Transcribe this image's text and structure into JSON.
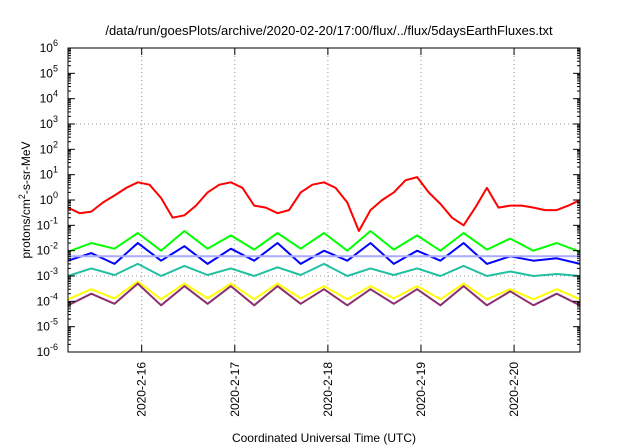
{
  "chart_data": {
    "type": "line",
    "title": "/data/run/goesPlots/archive/2020-02-20/17:00/flux/../flux/5daysEarthFluxes.txt",
    "xlabel": "Coordinated Universal Time (UTC)",
    "ylabel_parts": [
      "protons/cm",
      "2",
      "-s-sr-MeV"
    ],
    "y_scale": "log",
    "ylim": [
      1e-06,
      1000000.0
    ],
    "y_ticks": [
      {
        "base": "10",
        "exp": "-6",
        "value": 1e-06
      },
      {
        "base": "10",
        "exp": "-5",
        "value": 1e-05
      },
      {
        "base": "10",
        "exp": "-4",
        "value": 0.0001
      },
      {
        "base": "10",
        "exp": "-3",
        "value": 0.001
      },
      {
        "base": "10",
        "exp": "-2",
        "value": 0.01
      },
      {
        "base": "10",
        "exp": "-1",
        "value": 0.1
      },
      {
        "base": "10",
        "exp": "0",
        "value": 1
      },
      {
        "base": "10",
        "exp": "1",
        "value": 10
      },
      {
        "base": "10",
        "exp": "2",
        "value": 100
      },
      {
        "base": "10",
        "exp": "3",
        "value": 1000
      },
      {
        "base": "10",
        "exp": "4",
        "value": 10000
      },
      {
        "base": "10",
        "exp": "5",
        "value": 100000
      },
      {
        "base": "10",
        "exp": "6",
        "value": 1000000
      }
    ],
    "xlim": [
      "2020-02-15T05:00",
      "2020-02-20T17:00"
    ],
    "x_ticks": [
      {
        "label": "2020-2-16",
        "value": "2020-02-16T00:00"
      },
      {
        "label": "2020-2-17",
        "value": "2020-02-17T00:00"
      },
      {
        "label": "2020-2-18",
        "value": "2020-02-18T00:00"
      },
      {
        "label": "2020-2-19",
        "value": "2020-02-19T00:00"
      },
      {
        "label": "2020-2-20",
        "value": "2020-02-20T00:00"
      }
    ],
    "grid": true,
    "series": [
      {
        "color": "#ff0000",
        "x": [
          "2020-02-15T05:00",
          "2020-02-15T08:00",
          "2020-02-15T11:00",
          "2020-02-15T14:00",
          "2020-02-15T17:00",
          "2020-02-15T20:00",
          "2020-02-15T23:00",
          "2020-02-16T02:00",
          "2020-02-16T05:00",
          "2020-02-16T08:00",
          "2020-02-16T11:00",
          "2020-02-16T14:00",
          "2020-02-16T17:00",
          "2020-02-16T20:00",
          "2020-02-16T23:00",
          "2020-02-17T02:00",
          "2020-02-17T05:00",
          "2020-02-17T08:00",
          "2020-02-17T11:00",
          "2020-02-17T14:00",
          "2020-02-17T17:00",
          "2020-02-17T20:00",
          "2020-02-17T23:00",
          "2020-02-18T02:00",
          "2020-02-18T05:00",
          "2020-02-18T08:00",
          "2020-02-18T11:00",
          "2020-02-18T14:00",
          "2020-02-18T17:00",
          "2020-02-18T20:00",
          "2020-02-18T23:00",
          "2020-02-19T02:00",
          "2020-02-19T05:00",
          "2020-02-19T08:00",
          "2020-02-19T11:00",
          "2020-02-19T14:00",
          "2020-02-19T17:00",
          "2020-02-19T20:00",
          "2020-02-19T23:00",
          "2020-02-20T02:00",
          "2020-02-20T05:00",
          "2020-02-20T08:00",
          "2020-02-20T11:00",
          "2020-02-20T14:00",
          "2020-02-20T17:00"
        ],
        "y": [
          0.5,
          0.3,
          0.35,
          0.8,
          1.5,
          3,
          5,
          4,
          1.2,
          0.2,
          0.25,
          0.6,
          2,
          4,
          5,
          3,
          0.6,
          0.5,
          0.3,
          0.4,
          2,
          4,
          5,
          3,
          0.8,
          0.06,
          0.4,
          1,
          2,
          6,
          8,
          2,
          0.7,
          0.2,
          0.1,
          0.5,
          3,
          0.5,
          0.6,
          0.6,
          0.5,
          0.4,
          0.4,
          0.6,
          1
        ]
      },
      {
        "color": "#00ff00",
        "x": [
          "2020-02-15T05:00",
          "2020-02-15T11:00",
          "2020-02-15T17:00",
          "2020-02-15T23:00",
          "2020-02-16T05:00",
          "2020-02-16T11:00",
          "2020-02-16T17:00",
          "2020-02-16T23:00",
          "2020-02-17T05:00",
          "2020-02-17T11:00",
          "2020-02-17T17:00",
          "2020-02-17T23:00",
          "2020-02-18T05:00",
          "2020-02-18T11:00",
          "2020-02-18T17:00",
          "2020-02-18T23:00",
          "2020-02-19T05:00",
          "2020-02-19T11:00",
          "2020-02-19T17:00",
          "2020-02-19T23:00",
          "2020-02-20T05:00",
          "2020-02-20T11:00",
          "2020-02-20T17:00"
        ],
        "y": [
          0.009,
          0.02,
          0.012,
          0.05,
          0.01,
          0.06,
          0.012,
          0.04,
          0.011,
          0.05,
          0.012,
          0.05,
          0.01,
          0.06,
          0.011,
          0.04,
          0.01,
          0.05,
          0.011,
          0.03,
          0.01,
          0.02,
          0.009
        ]
      },
      {
        "color": "#0000ff",
        "x": [
          "2020-02-15T05:00",
          "2020-02-15T11:00",
          "2020-02-15T17:00",
          "2020-02-15T23:00",
          "2020-02-16T05:00",
          "2020-02-16T11:00",
          "2020-02-16T17:00",
          "2020-02-16T23:00",
          "2020-02-17T05:00",
          "2020-02-17T11:00",
          "2020-02-17T17:00",
          "2020-02-17T23:00",
          "2020-02-18T05:00",
          "2020-02-18T11:00",
          "2020-02-18T17:00",
          "2020-02-18T23:00",
          "2020-02-19T05:00",
          "2020-02-19T11:00",
          "2020-02-19T17:00",
          "2020-02-19T23:00",
          "2020-02-20T05:00",
          "2020-02-20T11:00",
          "2020-02-20T17:00"
        ],
        "y": [
          0.004,
          0.008,
          0.003,
          0.02,
          0.004,
          0.015,
          0.003,
          0.012,
          0.004,
          0.02,
          0.003,
          0.01,
          0.004,
          0.02,
          0.003,
          0.01,
          0.004,
          0.02,
          0.003,
          0.006,
          0.004,
          0.005,
          0.003
        ]
      },
      {
        "color": "#aaaaff",
        "x": [
          "2020-02-15T05:00",
          "2020-02-16T05:00",
          "2020-02-17T05:00",
          "2020-02-18T05:00",
          "2020-02-19T05:00",
          "2020-02-20T05:00",
          "2020-02-20T17:00"
        ],
        "y": [
          0.006,
          0.006,
          0.006,
          0.006,
          0.006,
          0.006,
          0.006
        ]
      },
      {
        "color": "#20c0a0",
        "x": [
          "2020-02-15T05:00",
          "2020-02-15T11:00",
          "2020-02-15T17:00",
          "2020-02-15T23:00",
          "2020-02-16T05:00",
          "2020-02-16T11:00",
          "2020-02-16T17:00",
          "2020-02-16T23:00",
          "2020-02-17T05:00",
          "2020-02-17T11:00",
          "2020-02-17T17:00",
          "2020-02-17T23:00",
          "2020-02-18T05:00",
          "2020-02-18T11:00",
          "2020-02-18T17:00",
          "2020-02-18T23:00",
          "2020-02-19T05:00",
          "2020-02-19T11:00",
          "2020-02-19T17:00",
          "2020-02-19T23:00",
          "2020-02-20T05:00",
          "2020-02-20T11:00",
          "2020-02-20T17:00"
        ],
        "y": [
          0.001,
          0.002,
          0.0011,
          0.003,
          0.001,
          0.0025,
          0.0011,
          0.002,
          0.001,
          0.0022,
          0.0011,
          0.003,
          0.001,
          0.002,
          0.0011,
          0.002,
          0.001,
          0.0025,
          0.001,
          0.0015,
          0.001,
          0.0012,
          0.001
        ]
      },
      {
        "color": "#ffff00",
        "x": [
          "2020-02-15T05:00",
          "2020-02-15T11:00",
          "2020-02-15T17:00",
          "2020-02-15T23:00",
          "2020-02-16T05:00",
          "2020-02-16T11:00",
          "2020-02-16T17:00",
          "2020-02-16T23:00",
          "2020-02-17T05:00",
          "2020-02-17T11:00",
          "2020-02-17T17:00",
          "2020-02-17T23:00",
          "2020-02-18T05:00",
          "2020-02-18T11:00",
          "2020-02-18T17:00",
          "2020-02-18T23:00",
          "2020-02-19T05:00",
          "2020-02-19T11:00",
          "2020-02-19T17:00",
          "2020-02-19T23:00",
          "2020-02-20T05:00",
          "2020-02-20T11:00",
          "2020-02-20T17:00"
        ],
        "y": [
          0.00012,
          0.0003,
          0.00013,
          0.0006,
          0.00012,
          0.0005,
          0.00013,
          0.0005,
          0.00012,
          0.0005,
          0.00013,
          0.0004,
          0.00012,
          0.0004,
          0.00013,
          0.0004,
          0.00012,
          0.0005,
          0.00012,
          0.0003,
          0.00012,
          0.0003,
          0.00012
        ]
      },
      {
        "color": "#8b2f6f",
        "x": [
          "2020-02-15T05:00",
          "2020-02-15T11:00",
          "2020-02-15T17:00",
          "2020-02-15T23:00",
          "2020-02-16T05:00",
          "2020-02-16T11:00",
          "2020-02-16T17:00",
          "2020-02-16T23:00",
          "2020-02-17T05:00",
          "2020-02-17T11:00",
          "2020-02-17T17:00",
          "2020-02-17T23:00",
          "2020-02-18T05:00",
          "2020-02-18T11:00",
          "2020-02-18T17:00",
          "2020-02-18T23:00",
          "2020-02-19T05:00",
          "2020-02-19T11:00",
          "2020-02-19T17:00",
          "2020-02-19T23:00",
          "2020-02-20T05:00",
          "2020-02-20T11:00",
          "2020-02-20T17:00"
        ],
        "y": [
          7e-05,
          0.0002,
          8e-05,
          0.0005,
          7e-05,
          0.0004,
          8e-05,
          0.0004,
          7e-05,
          0.0004,
          8e-05,
          0.0003,
          7e-05,
          0.0003,
          8e-05,
          0.0003,
          7e-05,
          0.0004,
          7e-05,
          0.00025,
          7e-05,
          0.0002,
          7e-05
        ]
      }
    ]
  }
}
